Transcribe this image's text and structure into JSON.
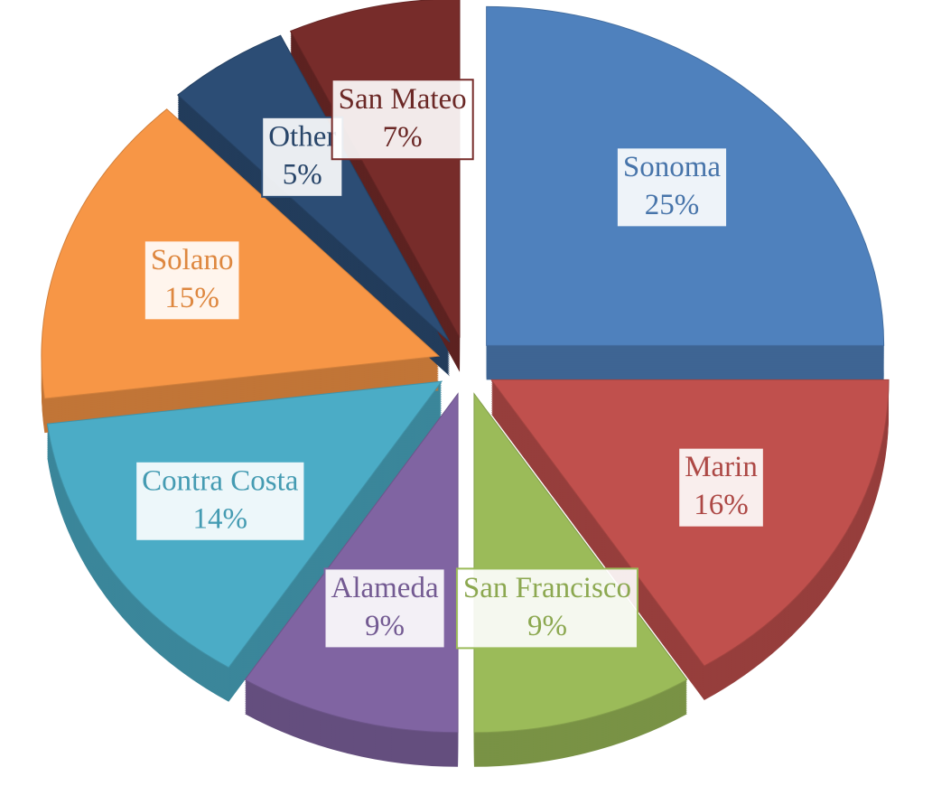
{
  "chart_data": {
    "type": "pie",
    "categories": [
      "Sonoma",
      "Marin",
      "San Francisco",
      "Alameda",
      "Contra Costa",
      "Solano",
      "Other",
      "San Mateo"
    ],
    "values": [
      25,
      16,
      9,
      9,
      14,
      15,
      5,
      7
    ],
    "value_labels": [
      "25%",
      "16%",
      "9%",
      "9%",
      "14%",
      "15%",
      "5%",
      "7%"
    ],
    "colors": [
      "#4f81bd",
      "#c0504d",
      "#9bbb59",
      "#8064a2",
      "#4bacc6",
      "#f79646",
      "#2c4d75",
      "#772c2a"
    ],
    "legend": false
  }
}
